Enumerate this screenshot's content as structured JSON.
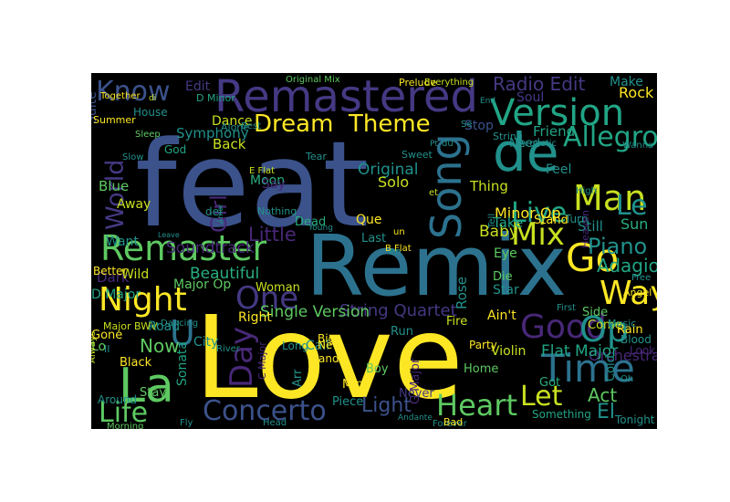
{
  "palette": [
    "#3b518a",
    "#2c728e",
    "#21918c",
    "#28ae80",
    "#5ec962",
    "#addc30",
    "#fde725",
    "#482878",
    "#443a83",
    "#35b779"
  ],
  "words": [
    {
      "t": "feat",
      "c": "#3b528b"
    },
    {
      "t": "Love",
      "c": "#fde725"
    },
    {
      "t": "Remix",
      "c": "#2c728e"
    },
    {
      "t": "Remastered",
      "c": "#443983"
    },
    {
      "t": "de",
      "c": "#21918c"
    },
    {
      "t": "Version",
      "c": "#21a585"
    },
    {
      "t": "Remaster",
      "c": "#5ec962"
    },
    {
      "t": "La",
      "c": "#5ec962"
    },
    {
      "t": "Go",
      "c": "#fde725"
    },
    {
      "t": "Night",
      "c": "#fde725"
    },
    {
      "t": "Man",
      "c": "#c8e020"
    },
    {
      "t": "Song",
      "c": "#2c728e"
    },
    {
      "t": "Dream",
      "c": "#fde725"
    },
    {
      "t": "Theme",
      "c": "#fde725"
    },
    {
      "t": "Know",
      "c": "#3b528b"
    },
    {
      "t": "One",
      "c": "#443983"
    },
    {
      "t": "Mix",
      "c": "#c8e020"
    },
    {
      "t": "Way",
      "c": "#fde725"
    },
    {
      "t": "Good",
      "c": "#482878"
    },
    {
      "t": "Op",
      "c": "#21918c"
    },
    {
      "t": "Time",
      "c": "#2c728e"
    },
    {
      "t": "Concerto",
      "c": "#3b528b"
    },
    {
      "t": "Heart",
      "c": "#5ec962"
    },
    {
      "t": "Let",
      "c": "#c8e020"
    },
    {
      "t": "Life",
      "c": "#5ec962"
    },
    {
      "t": "Live",
      "c": "#21a585"
    },
    {
      "t": "Le",
      "c": "#21918c"
    },
    {
      "t": "Day",
      "c": "#482878"
    },
    {
      "t": "Allegro",
      "c": "#21a585"
    },
    {
      "t": "Radio Edit",
      "c": "#443983"
    },
    {
      "t": "World",
      "c": "#443983"
    },
    {
      "t": "Girl",
      "c": "#482878"
    },
    {
      "t": "U",
      "c": "#2c728e"
    },
    {
      "t": "Now",
      "c": "#5ec962"
    },
    {
      "t": "Light",
      "c": "#3b528b"
    },
    {
      "t": "El",
      "c": "#21918c"
    },
    {
      "t": "Act",
      "c": "#5ec962"
    },
    {
      "t": "Piano",
      "c": "#21918c"
    },
    {
      "t": "Adagio",
      "c": "#21a585"
    },
    {
      "t": "Little",
      "c": "#482878"
    },
    {
      "t": "String Quartet",
      "c": "#443983"
    },
    {
      "t": "Single Version",
      "c": "#5ec962"
    },
    {
      "t": "Orchestra",
      "c": "#482878"
    },
    {
      "t": "Flat Major",
      "c": "#21a585"
    },
    {
      "t": "Soundtrack",
      "c": "#482878"
    },
    {
      "t": "Minor Op",
      "c": "#fde725"
    },
    {
      "t": "Original",
      "c": "#21918c"
    },
    {
      "t": "Symphony",
      "c": "#21918c"
    },
    {
      "t": "Beautiful",
      "c": "#28ae80"
    },
    {
      "t": "Back",
      "c": "#c8e020"
    },
    {
      "t": "Dance",
      "c": "#c8e020"
    },
    {
      "t": "Moon",
      "c": "#28ae80"
    },
    {
      "t": "Solo",
      "c": "#c8e020"
    },
    {
      "t": "Baby",
      "c": "#c8e020"
    },
    {
      "t": "Thing",
      "c": "#c8e020"
    },
    {
      "t": "Still",
      "c": "#21918c"
    },
    {
      "t": "Sun",
      "c": "#28ae80"
    },
    {
      "t": "Take",
      "c": "#21a585"
    },
    {
      "t": "Friend",
      "c": "#21a585"
    },
    {
      "t": "Feel",
      "c": "#21918c"
    },
    {
      "t": "Rock",
      "c": "#fde725"
    },
    {
      "t": "Make",
      "c": "#21918c"
    },
    {
      "t": "Soul",
      "c": "#443983"
    },
    {
      "t": "Need",
      "c": "#21918c"
    },
    {
      "t": "Stop",
      "c": "#3b528b"
    },
    {
      "t": "Edit",
      "c": "#443983"
    },
    {
      "t": "Blue",
      "c": "#5ec962"
    },
    {
      "t": "Away",
      "c": "#c8e020"
    },
    {
      "t": "Want",
      "c": "#21918c"
    },
    {
      "t": "Dark",
      "c": "#482878"
    },
    {
      "t": "Better",
      "c": "#fde725"
    },
    {
      "t": "Wild",
      "c": "#c8e020"
    },
    {
      "t": "D Major",
      "c": "#21a585"
    },
    {
      "t": "Major Op",
      "c": "#5ec962"
    },
    {
      "t": "Woman",
      "c": "#c8e020"
    },
    {
      "t": "Right",
      "c": "#fde725"
    },
    {
      "t": "Run",
      "c": "#21918c"
    },
    {
      "t": "Fire",
      "c": "#c8e020"
    },
    {
      "t": "Last",
      "c": "#21918c"
    },
    {
      "t": "Dead",
      "c": "#28ae80"
    },
    {
      "t": "Que",
      "c": "#fde725"
    },
    {
      "t": "Say",
      "c": "#482878"
    },
    {
      "t": "Rose",
      "c": "#21918c"
    },
    {
      "t": "Eye",
      "c": "#5ec962"
    },
    {
      "t": "Die",
      "c": "#5ec962"
    },
    {
      "t": "Star",
      "c": "#21918c"
    },
    {
      "t": "Side",
      "c": "#5ec962"
    },
    {
      "t": "Rain",
      "c": "#fde725"
    },
    {
      "t": "Come",
      "c": "#c8e020"
    },
    {
      "t": "Violin",
      "c": "#c8e020"
    },
    {
      "t": "Ain't",
      "c": "#fde725"
    },
    {
      "t": "Call",
      "c": "#21918c"
    },
    {
      "t": "Mind",
      "c": "#fde725"
    },
    {
      "t": "Boy",
      "c": "#5ec962"
    },
    {
      "t": "Home",
      "c": "#5ec962"
    },
    {
      "t": "Got",
      "c": "#28ae80"
    },
    {
      "t": "Never",
      "c": "#443983"
    },
    {
      "t": "Piece",
      "c": "#21918c"
    },
    {
      "t": "Something",
      "c": "#21a585"
    },
    {
      "t": "Sonata",
      "c": "#21a585"
    },
    {
      "t": "Stay",
      "c": "#5ec962"
    },
    {
      "t": "Black",
      "c": "#fde725"
    },
    {
      "t": "Gone",
      "c": "#fde725"
    },
    {
      "t": "Lo",
      "c": "#5ec962"
    },
    {
      "t": "Road",
      "c": "#21918c"
    },
    {
      "t": "City",
      "c": "#21918c"
    },
    {
      "t": "Hand",
      "c": "#fde725"
    },
    {
      "t": "Big",
      "c": "#fde725"
    },
    {
      "t": "New",
      "c": "#fde725"
    },
    {
      "t": "Arr",
      "c": "#21918c"
    },
    {
      "t": "C Major",
      "c": "#482878"
    },
    {
      "t": "G Major",
      "c": "#482878"
    },
    {
      "t": "Suite",
      "c": "#3b528b"
    },
    {
      "t": "Summer",
      "c": "#fde725"
    },
    {
      "t": "Together",
      "c": "#fde725"
    },
    {
      "t": "House",
      "c": "#21918c"
    },
    {
      "t": "D Minor",
      "c": "#21a585"
    },
    {
      "t": "Alone",
      "c": "#21918c"
    },
    {
      "t": "Sleep",
      "c": "#5ec962"
    },
    {
      "t": "Slow",
      "c": "#21918c"
    },
    {
      "t": "God",
      "c": "#21a585"
    },
    {
      "t": "Original Mix",
      "c": "#5ec962"
    },
    {
      "t": "Prelude",
      "c": "#fde725"
    },
    {
      "t": "Everything",
      "c": "#c8e020"
    },
    {
      "t": "E Flat",
      "c": "#c8e020"
    },
    {
      "t": "Nothing",
      "c": "#21918c"
    },
    {
      "t": "Young",
      "c": "#21918c"
    },
    {
      "t": "Tear",
      "c": "#21918c"
    },
    {
      "t": "Sweet",
      "c": "#21918c"
    },
    {
      "t": "Wanna",
      "c": "#21918c"
    },
    {
      "t": "High",
      "c": "#21918c"
    },
    {
      "t": "Stand",
      "c": "#fde725"
    },
    {
      "t": "Turn",
      "c": "#21918c"
    },
    {
      "t": "Heaven",
      "c": "#482878"
    },
    {
      "t": "Free",
      "c": "#21918c"
    },
    {
      "t": "Angel",
      "c": "#fde725"
    },
    {
      "t": "B Flat",
      "c": "#fde725"
    },
    {
      "t": "Tell",
      "c": "#21918c"
    },
    {
      "t": "First",
      "c": "#21918c"
    },
    {
      "t": "Music",
      "c": "#21918c"
    },
    {
      "t": "Blood",
      "c": "#21918c"
    },
    {
      "t": "Cold",
      "c": "#21918c"
    },
    {
      "t": "Look",
      "c": "#482878"
    },
    {
      "t": "Acoustic",
      "c": "#21918c"
    },
    {
      "t": "String",
      "c": "#21918c"
    },
    {
      "t": "Best",
      "c": "#21918c"
    },
    {
      "t": "del",
      "c": "#21918c"
    },
    {
      "t": "Amor",
      "c": "#21918c"
    },
    {
      "t": "Major BWV",
      "c": "#c8e020"
    },
    {
      "t": "Morning",
      "c": "#5ec962"
    },
    {
      "t": "Around",
      "c": "#21918c"
    },
    {
      "t": "Fly",
      "c": "#21918c"
    },
    {
      "t": "Head",
      "c": "#21918c"
    },
    {
      "t": "Forever",
      "c": "#21918c"
    },
    {
      "t": "Bad",
      "c": "#fde725"
    },
    {
      "t": "Andante",
      "c": "#21918c"
    },
    {
      "t": "Tonight",
      "c": "#21918c"
    },
    {
      "t": "III",
      "c": "#21918c"
    },
    {
      "t": "Dancing",
      "c": "#21918c"
    },
    {
      "t": "River",
      "c": "#21918c"
    },
    {
      "t": "Long",
      "c": "#21918c"
    },
    {
      "t": "Party",
      "c": "#fde725"
    },
    {
      "t": "Always",
      "c": "#c8e020"
    },
    {
      "t": "Leave",
      "c": "#21918c"
    },
    {
      "t": "Oh",
      "c": "#21918c"
    },
    {
      "t": "et",
      "c": "#c8e020"
    },
    {
      "t": "en",
      "c": "#21918c"
    },
    {
      "t": "un",
      "c": "#fde725"
    },
    {
      "t": "II",
      "c": "#21918c"
    },
    {
      "t": "di",
      "c": "#c8e020"
    },
    {
      "t": "Se",
      "c": "#21918c"
    },
    {
      "t": "Pt",
      "c": "#21918c"
    },
    {
      "t": "du",
      "c": "#21918c"
    },
    {
      "t": "End",
      "c": "#21918c"
    },
    {
      "t": "King",
      "c": "#21918c"
    }
  ]
}
